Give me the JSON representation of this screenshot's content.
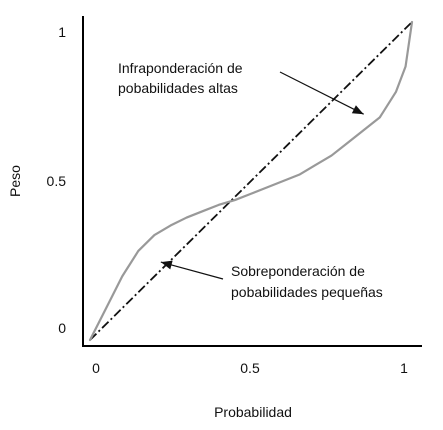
{
  "chart_data": {
    "type": "line",
    "xlabel": "Probabilidad",
    "ylabel": "Peso",
    "xlim": [
      0,
      1
    ],
    "ylim": [
      0,
      1
    ],
    "x_ticks": [
      {
        "value": 0,
        "label": "0"
      },
      {
        "value": 0.5,
        "label": "0.5"
      },
      {
        "value": 1,
        "label": "1"
      }
    ],
    "y_ticks": [
      {
        "value": 0,
        "label": "0"
      },
      {
        "value": 0.5,
        "label": "0.5"
      },
      {
        "value": 1,
        "label": "1"
      }
    ],
    "grid": false,
    "series": [
      {
        "style": "dash-dot",
        "color": "#111111",
        "points": [
          [
            0,
            0
          ],
          [
            1,
            1
          ]
        ]
      },
      {
        "style": "solid",
        "color": "#999999",
        "points": [
          [
            0.0,
            0.0
          ],
          [
            0.05,
            0.1
          ],
          [
            0.1,
            0.2
          ],
          [
            0.15,
            0.28
          ],
          [
            0.2,
            0.33
          ],
          [
            0.25,
            0.36
          ],
          [
            0.3,
            0.385
          ],
          [
            0.35,
            0.405
          ],
          [
            0.4,
            0.425
          ],
          [
            0.45,
            0.44
          ],
          [
            0.5,
            0.46
          ],
          [
            0.55,
            0.48
          ],
          [
            0.6,
            0.5
          ],
          [
            0.65,
            0.52
          ],
          [
            0.7,
            0.55
          ],
          [
            0.75,
            0.58
          ],
          [
            0.8,
            0.62
          ],
          [
            0.85,
            0.66
          ],
          [
            0.9,
            0.7
          ],
          [
            0.95,
            0.78
          ],
          [
            0.98,
            0.86
          ],
          [
            1.0,
            1.0
          ]
        ]
      }
    ],
    "annotations": [
      {
        "id": "upper",
        "lines": [
          "Infraponderación de",
          "pobabilidades altas"
        ],
        "target": [
          0.85,
          0.71
        ]
      },
      {
        "id": "lower",
        "lines": [
          "Sobreponderación de",
          "pobabilidades pequeñas"
        ],
        "target": [
          0.22,
          0.245
        ]
      }
    ]
  }
}
